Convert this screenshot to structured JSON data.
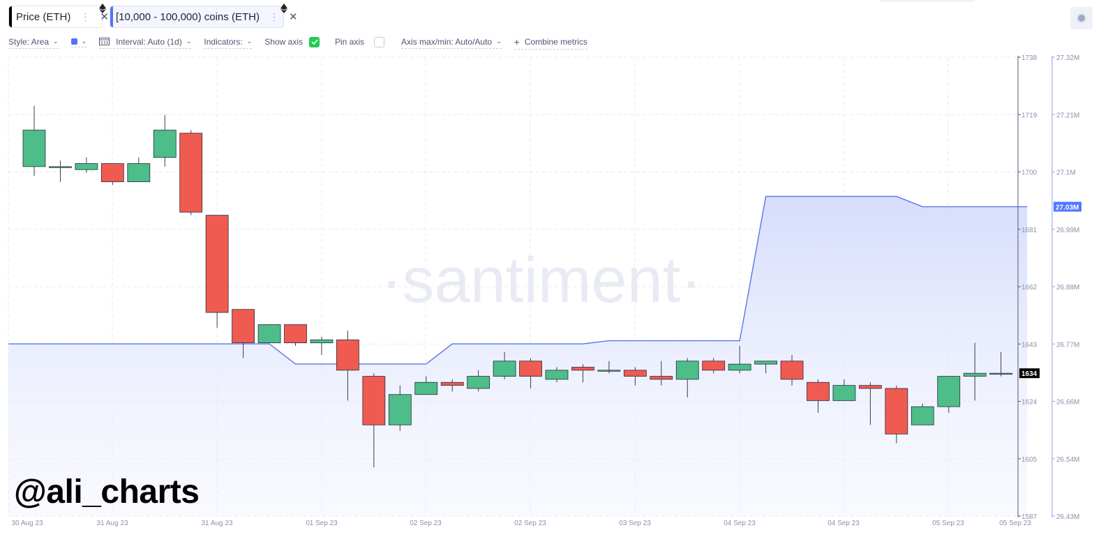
{
  "tabs": [
    {
      "label": "Price (ETH)",
      "color": "#000000",
      "icon": "ethereum-icon"
    },
    {
      "label": "[10,000 - 100,000) coins (ETH)",
      "color": "#5275ff",
      "icon": "ethereum-icon"
    }
  ],
  "toolbar": {
    "style": "Style: Area",
    "interval": "Interval: Auto (1d)",
    "indicators": "Indicators:",
    "show_axis": "Show axis",
    "show_axis_checked": true,
    "pin_axis": "Pin axis",
    "pin_axis_checked": false,
    "axis_maxmin": "Axis max/min: Auto/Auto",
    "combine": "Combine metrics",
    "series_color": "#5275ff"
  },
  "watermark_text": "@ali_charts",
  "brand_watermark": "·santiment·",
  "chart_data": {
    "type": "candlestick+area",
    "x_labels": [
      "30 Aug 23",
      "31 Aug 23",
      "31 Aug 23",
      "01 Sep 23",
      "02 Sep 23",
      "02 Sep 23",
      "03 Sep 23",
      "04 Sep 23",
      "04 Sep 23",
      "05 Sep 23",
      "05 Sep 23"
    ],
    "price_axis": {
      "ticks": [
        "1738",
        "1719",
        "1700",
        "1681",
        "1662",
        "1643",
        "1624",
        "1605",
        "1587"
      ],
      "min": 1587,
      "max": 1738,
      "current": "1634"
    },
    "holdings_axis": {
      "ticks": [
        "27.32M",
        "27.21M",
        "27.1M",
        "26.99M",
        "26.88M",
        "26.77M",
        "26.66M",
        "26.54M",
        "26.43M"
      ],
      "min": 26.43,
      "max": 27.32,
      "current": "27.03M"
    },
    "candles": [
      {
        "o": 1702,
        "h": 1722,
        "l": 1699,
        "c": 1714
      },
      {
        "o": 1702,
        "h": 1704,
        "l": 1697,
        "c": 1702
      },
      {
        "o": 1701,
        "h": 1705,
        "l": 1700,
        "c": 1703
      },
      {
        "o": 1703,
        "h": 1703,
        "l": 1696,
        "c": 1697
      },
      {
        "o": 1697,
        "h": 1705,
        "l": 1697,
        "c": 1703
      },
      {
        "o": 1705,
        "h": 1719,
        "l": 1702,
        "c": 1714
      },
      {
        "o": 1713,
        "h": 1714,
        "l": 1686,
        "c": 1687
      },
      {
        "o": 1686,
        "h": 1686,
        "l": 1649,
        "c": 1654
      },
      {
        "o": 1655,
        "h": 1655,
        "l": 1639,
        "c": 1644
      },
      {
        "o": 1644,
        "h": 1650,
        "l": 1644,
        "c": 1650
      },
      {
        "o": 1650,
        "h": 1650,
        "l": 1643,
        "c": 1644
      },
      {
        "o": 1644,
        "h": 1646,
        "l": 1640,
        "c": 1645
      },
      {
        "o": 1645,
        "h": 1648,
        "l": 1625,
        "c": 1635
      },
      {
        "o": 1633,
        "h": 1634,
        "l": 1603,
        "c": 1617
      },
      {
        "o": 1617,
        "h": 1630,
        "l": 1615,
        "c": 1627
      },
      {
        "o": 1627,
        "h": 1633,
        "l": 1627,
        "c": 1631
      },
      {
        "o": 1631,
        "h": 1632,
        "l": 1628,
        "c": 1630
      },
      {
        "o": 1629,
        "h": 1635,
        "l": 1628,
        "c": 1633
      },
      {
        "o": 1633,
        "h": 1641,
        "l": 1632,
        "c": 1638
      },
      {
        "o": 1638,
        "h": 1639,
        "l": 1629,
        "c": 1633
      },
      {
        "o": 1632,
        "h": 1636,
        "l": 1631,
        "c": 1635
      },
      {
        "o": 1636,
        "h": 1637,
        "l": 1631,
        "c": 1635
      },
      {
        "o": 1635,
        "h": 1638,
        "l": 1634,
        "c": 1635
      },
      {
        "o": 1635,
        "h": 1636,
        "l": 1630,
        "c": 1633
      },
      {
        "o": 1633,
        "h": 1638,
        "l": 1630,
        "c": 1632
      },
      {
        "o": 1632,
        "h": 1639,
        "l": 1626,
        "c": 1638
      },
      {
        "o": 1638,
        "h": 1639,
        "l": 1634,
        "c": 1635
      },
      {
        "o": 1635,
        "h": 1643,
        "l": 1634,
        "c": 1637
      },
      {
        "o": 1637,
        "h": 1638,
        "l": 1634,
        "c": 1638
      },
      {
        "o": 1638,
        "h": 1640,
        "l": 1630,
        "c": 1632
      },
      {
        "o": 1631,
        "h": 1632,
        "l": 1621,
        "c": 1625
      },
      {
        "o": 1625,
        "h": 1632,
        "l": 1625,
        "c": 1630
      },
      {
        "o": 1630,
        "h": 1631,
        "l": 1617,
        "c": 1629
      },
      {
        "o": 1629,
        "h": 1630,
        "l": 1611,
        "c": 1614
      },
      {
        "o": 1617,
        "h": 1624,
        "l": 1617,
        "c": 1623
      },
      {
        "o": 1623,
        "h": 1632,
        "l": 1621,
        "c": 1633
      },
      {
        "o": 1633,
        "h": 1644,
        "l": 1625,
        "c": 1634
      },
      {
        "o": 1634,
        "h": 1641,
        "l": 1633,
        "c": 1634
      }
    ],
    "holdings_area": [
      {
        "x": 0,
        "y": 26.764
      },
      {
        "x": 9,
        "y": 26.764
      },
      {
        "x": 10,
        "y": 26.725
      },
      {
        "x": 15,
        "y": 26.725
      },
      {
        "x": 16,
        "y": 26.764
      },
      {
        "x": 21,
        "y": 26.764
      },
      {
        "x": 22,
        "y": 26.77
      },
      {
        "x": 27,
        "y": 26.77
      },
      {
        "x": 28,
        "y": 27.05
      },
      {
        "x": 33,
        "y": 27.05
      },
      {
        "x": 34,
        "y": 27.03
      },
      {
        "x": 38,
        "y": 27.03
      }
    ]
  }
}
